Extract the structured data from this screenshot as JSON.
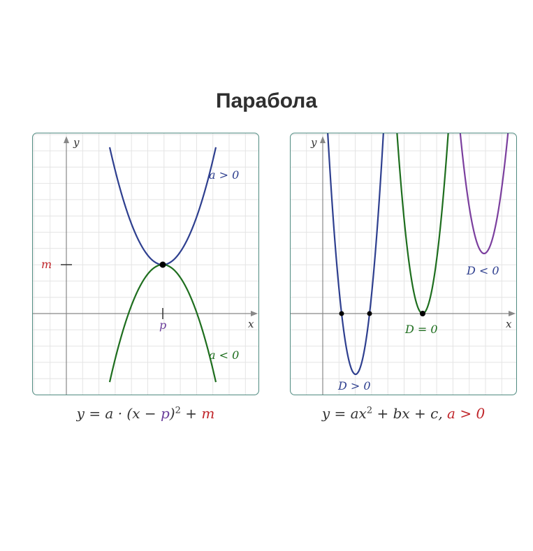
{
  "title": "Парабола",
  "colors": {
    "blue": "#2e3f8f",
    "green": "#1e6e1e",
    "purple": "#7b3f9e",
    "red": "#c0262b",
    "grid": "#e2e2e2",
    "axis": "#888888",
    "border": "#4f8a80"
  },
  "left": {
    "axis_x": "x",
    "axis_y": "y",
    "tick_x": "p",
    "tick_y": "m",
    "label_up": "a > 0",
    "label_down": "a < 0",
    "formula": {
      "lhs": "y = a · (x − ",
      "p": "p",
      "mid": ")",
      "exp": "2",
      "plus": " + ",
      "m": "m"
    }
  },
  "right": {
    "axis_x": "x",
    "axis_y": "y",
    "label_pos": "D > 0",
    "label_zero": "D = 0",
    "label_neg": "D < 0",
    "formula": {
      "lhs": "y = ax",
      "exp": "2",
      "rest": " + bx + c, ",
      "cond": "a > 0"
    }
  }
}
